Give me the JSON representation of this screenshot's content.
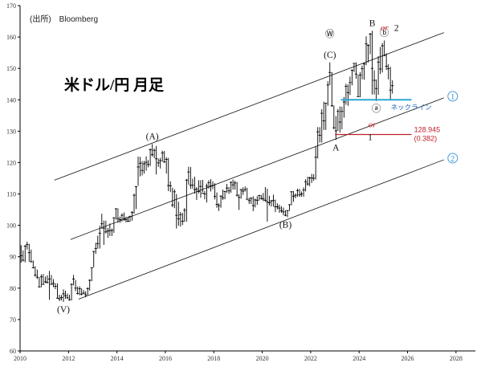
{
  "source_label": "(出所)　Bloomberg",
  "chart_data": {
    "type": "ohlc",
    "title": "米ドル/円 月足",
    "x_ticks": [
      "2010",
      "2012",
      "2014",
      "2016",
      "2018",
      "2020",
      "2022",
      "2024",
      "2026",
      "2028"
    ],
    "y_ticks": [
      "60",
      "70",
      "80",
      "90",
      "100",
      "110",
      "120",
      "130",
      "140",
      "150",
      "160",
      "170"
    ],
    "xlim": [
      2010,
      2028.8
    ],
    "ylim": [
      60,
      170
    ],
    "grid": false,
    "legend": "none",
    "series": [
      {
        "x": [
          "2010-01",
          "2010-02",
          "2010-03",
          "2010-04",
          "2010-05",
          "2010-06",
          "2010-07",
          "2010-08",
          "2010-09",
          "2010-10",
          "2010-11",
          "2010-12",
          "2011-01",
          "2011-02",
          "2011-03",
          "2011-04",
          "2011-05",
          "2011-06",
          "2011-07",
          "2011-08",
          "2011-09",
          "2011-10",
          "2011-11",
          "2011-12",
          "2012-01",
          "2012-02",
          "2012-03",
          "2012-04",
          "2012-05",
          "2012-06",
          "2012-07",
          "2012-08",
          "2012-09",
          "2012-10",
          "2012-11",
          "2012-12",
          "2013-01",
          "2013-02",
          "2013-03",
          "2013-04",
          "2013-05",
          "2013-06",
          "2013-07",
          "2013-08",
          "2013-09",
          "2013-10",
          "2013-11",
          "2013-12",
          "2014-01",
          "2014-02",
          "2014-03",
          "2014-04",
          "2014-05",
          "2014-06",
          "2014-07",
          "2014-08",
          "2014-09",
          "2014-10",
          "2014-11",
          "2014-12",
          "2015-01",
          "2015-02",
          "2015-03",
          "2015-04",
          "2015-05",
          "2015-06",
          "2015-07",
          "2015-08",
          "2015-09",
          "2015-10",
          "2015-11",
          "2015-12",
          "2016-01",
          "2016-02",
          "2016-03",
          "2016-04",
          "2016-05",
          "2016-06",
          "2016-07",
          "2016-08",
          "2016-09",
          "2016-10",
          "2016-11",
          "2016-12",
          "2017-01",
          "2017-02",
          "2017-03",
          "2017-04",
          "2017-05",
          "2017-06",
          "2017-07",
          "2017-08",
          "2017-09",
          "2017-10",
          "2017-11",
          "2017-12",
          "2018-01",
          "2018-02",
          "2018-03",
          "2018-04",
          "2018-05",
          "2018-06",
          "2018-07",
          "2018-08",
          "2018-09",
          "2018-10",
          "2018-11",
          "2018-12",
          "2019-01",
          "2019-02",
          "2019-03",
          "2019-04",
          "2019-05",
          "2019-06",
          "2019-07",
          "2019-08",
          "2019-09",
          "2019-10",
          "2019-11",
          "2019-12",
          "2020-01",
          "2020-02",
          "2020-03",
          "2020-04",
          "2020-05",
          "2020-06",
          "2020-07",
          "2020-08",
          "2020-09",
          "2020-10",
          "2020-11",
          "2020-12",
          "2021-01",
          "2021-02",
          "2021-03",
          "2021-04",
          "2021-05",
          "2021-06",
          "2021-07",
          "2021-08",
          "2021-09",
          "2021-10",
          "2021-11",
          "2021-12",
          "2022-01",
          "2022-02",
          "2022-03",
          "2022-04",
          "2022-05",
          "2022-06",
          "2022-07",
          "2022-08",
          "2022-09",
          "2022-10",
          "2022-11",
          "2022-12",
          "2023-01",
          "2023-02",
          "2023-03",
          "2023-04",
          "2023-05",
          "2023-06",
          "2023-07",
          "2023-08",
          "2023-09",
          "2023-10",
          "2023-11",
          "2023-12",
          "2024-01",
          "2024-02",
          "2024-03",
          "2024-04",
          "2024-05",
          "2024-06",
          "2024-07",
          "2024-08",
          "2024-09",
          "2024-10",
          "2024-11",
          "2024-12",
          "2025-01",
          "2025-02",
          "2025-03",
          "2025-04",
          "2025-05"
        ],
        "close": [
          90.3,
          88.9,
          93.4,
          93.9,
          91.3,
          88.4,
          86.5,
          84.2,
          83.5,
          80.4,
          83.6,
          81.2,
          82.0,
          81.8,
          82.9,
          81.2,
          81.5,
          80.6,
          76.8,
          76.6,
          77.0,
          78.2,
          77.6,
          76.9,
          76.3,
          81.2,
          82.9,
          80.0,
          78.3,
          79.8,
          78.1,
          78.4,
          77.9,
          79.8,
          82.5,
          86.5,
          91.7,
          92.6,
          94.2,
          97.5,
          100.5,
          99.1,
          97.9,
          98.2,
          98.3,
          98.4,
          102.4,
          105.3,
          102.2,
          101.8,
          103.2,
          102.2,
          101.8,
          101.3,
          102.8,
          104.1,
          109.6,
          112.3,
          118.6,
          119.8,
          117.5,
          119.6,
          120.1,
          119.4,
          124.1,
          122.5,
          123.9,
          121.2,
          119.9,
          120.6,
          123.1,
          120.2,
          121.0,
          112.7,
          112.6,
          106.5,
          110.7,
          103.2,
          102.1,
          103.4,
          101.3,
          104.8,
          114.4,
          117.0,
          112.8,
          112.8,
          111.4,
          111.5,
          110.8,
          112.4,
          110.2,
          110.0,
          112.5,
          113.6,
          112.5,
          112.7,
          109.2,
          106.7,
          106.3,
          109.3,
          108.8,
          110.8,
          111.9,
          111.0,
          113.7,
          112.9,
          113.5,
          109.6,
          108.9,
          111.4,
          110.9,
          111.4,
          108.3,
          107.9,
          108.6,
          106.3,
          108.1,
          108.0,
          109.5,
          108.6,
          108.4,
          108.0,
          107.5,
          107.2,
          107.8,
          107.9,
          105.9,
          105.9,
          105.5,
          104.7,
          104.3,
          103.2,
          104.7,
          106.6,
          110.7,
          109.3,
          109.6,
          111.1,
          109.7,
          110.0,
          111.3,
          113.9,
          113.2,
          115.1,
          115.1,
          115.0,
          121.7,
          129.8,
          128.7,
          135.7,
          133.3,
          138.9,
          144.7,
          148.7,
          138.1,
          131.1,
          130.1,
          136.3,
          132.9,
          136.3,
          139.3,
          144.3,
          142.3,
          145.5,
          149.4,
          151.6,
          148.2,
          141.0,
          147.9,
          149.9,
          151.4,
          157.8,
          157.3,
          160.9,
          150.0,
          146.2,
          143.6,
          152.0,
          149.8,
          157.2,
          154.1,
          150.7,
          149.9,
          143.1,
          144.5
        ],
        "high": [
          93.7,
          92.0,
          93.7,
          94.8,
          94.1,
          92.3,
          88.8,
          87.0,
          85.9,
          83.5,
          84.4,
          84.5,
          83.7,
          84.1,
          85.5,
          84.2,
          82.9,
          81.6,
          81.5,
          77.9,
          77.8,
          79.6,
          79.2,
          78.3,
          77.9,
          81.5,
          84.2,
          82.6,
          80.5,
          80.6,
          79.9,
          79.4,
          79.0,
          80.3,
          82.8,
          86.6,
          91.8,
          94.5,
          96.7,
          99.9,
          103.7,
          101.5,
          101.5,
          99.2,
          100.6,
          99.0,
          102.6,
          105.4,
          105.4,
          102.8,
          103.8,
          104.1,
          102.8,
          102.8,
          103.1,
          104.5,
          110.1,
          112.5,
          121.9,
          121.8,
          120.5,
          120.5,
          122.0,
          120.8,
          124.5,
          125.9,
          124.5,
          125.3,
          121.3,
          121.5,
          123.8,
          123.7,
          121.7,
          121.5,
          114.0,
          112.0,
          111.5,
          110.0,
          107.5,
          104.3,
          104.0,
          105.5,
          114.8,
          118.7,
          118.6,
          114.9,
          115.5,
          112.2,
          114.4,
          114.4,
          114.5,
          111.0,
          113.3,
          114.4,
          114.7,
          114.0,
          113.4,
          110.5,
          107.0,
          109.6,
          111.4,
          111.0,
          113.2,
          112.2,
          114.0,
          114.6,
          114.2,
          113.8,
          109.9,
          111.6,
          112.1,
          112.4,
          112.0,
          108.8,
          109.0,
          109.3,
          108.5,
          109.3,
          109.7,
          109.7,
          110.3,
          112.2,
          111.7,
          109.4,
          108.1,
          109.8,
          108.2,
          107.0,
          106.6,
          106.1,
          105.7,
          104.8,
          104.9,
          106.7,
          110.9,
          110.9,
          110.2,
          111.7,
          111.6,
          110.8,
          112.1,
          114.7,
          115.5,
          115.5,
          116.4,
          116.3,
          125.1,
          131.3,
          131.3,
          137.0,
          139.4,
          139.0,
          145.9,
          151.9,
          148.8,
          138.2,
          134.8,
          137.1,
          137.9,
          137.8,
          140.9,
          145.1,
          144.9,
          147.4,
          149.7,
          151.7,
          151.9,
          148.0,
          148.8,
          150.9,
          151.9,
          160.2,
          157.7,
          161.3,
          162.0,
          149.4,
          146.5,
          153.9,
          156.8,
          158.1,
          158.9,
          154.8,
          151.3,
          150.5,
          146.2
        ],
        "low": [
          88.1,
          88.5,
          88.2,
          92.3,
          88.4,
          88.2,
          86.3,
          83.6,
          82.9,
          80.2,
          80.3,
          81.1,
          81.6,
          81.5,
          76.3,
          81.2,
          80.3,
          79.7,
          76.8,
          75.9,
          76.1,
          75.6,
          76.6,
          76.6,
          76.0,
          76.1,
          80.9,
          79.0,
          78.0,
          77.7,
          77.7,
          78.1,
          77.1,
          77.8,
          79.2,
          82.2,
          86.6,
          90.9,
          92.6,
          92.6,
          98.9,
          93.8,
          97.4,
          96.0,
          96.6,
          96.6,
          97.6,
          101.8,
          100.8,
          100.8,
          101.2,
          101.4,
          100.9,
          101.1,
          101.1,
          101.5,
          103.7,
          105.2,
          112.6,
          115.6,
          115.9,
          116.5,
          117.4,
          118.5,
          118.9,
          121.9,
          121.4,
          116.2,
          118.6,
          118.1,
          120.3,
          119.9,
          116.5,
          110.9,
          110.6,
          105.8,
          105.5,
          99.0,
          99.9,
          99.6,
          100.1,
          101.1,
          101.2,
          113.0,
          111.6,
          111.7,
          110.1,
          108.1,
          110.2,
          108.8,
          110.6,
          108.3,
          107.3,
          111.7,
          110.8,
          111.5,
          108.3,
          105.6,
          104.6,
          105.6,
          108.1,
          108.3,
          110.3,
          110.0,
          110.4,
          111.4,
          111.4,
          109.2,
          104.9,
          108.5,
          109.7,
          110.8,
          108.3,
          106.8,
          106.8,
          104.5,
          105.7,
          106.5,
          107.9,
          108.2,
          107.7,
          107.5,
          101.2,
          106.3,
          105.99,
          106.0,
          104.2,
          105.1,
          104.0,
          104.0,
          103.2,
          102.9,
          102.6,
          104.6,
          106.4,
          107.5,
          108.6,
          109.1,
          109.1,
          109.1,
          109.1,
          110.8,
          112.6,
          112.5,
          113.5,
          114.2,
          114.6,
          121.3,
          126.4,
          126.4,
          130.4,
          130.4,
          138.1,
          144.7,
          137.7,
          130.6,
          127.2,
          130.1,
          129.6,
          130.6,
          134.3,
          138.4,
          138.1,
          141.5,
          144.6,
          148.8,
          146.7,
          140.9,
          140.8,
          146.5,
          146.4,
          151.0,
          151.9,
          154.5,
          141.7,
          141.7,
          139.6,
          141.6,
          148.2,
          148.7,
          153.9,
          149.5,
          146.5,
          139.9,
          142.0
        ]
      }
    ],
    "annotations": {
      "wave_labels": [
        {
          "text": "(V)",
          "x": "2011-10",
          "y": 75.6,
          "pos": "below"
        },
        {
          "text": "(A)",
          "x": "2015-06",
          "y": 125.9,
          "pos": "above"
        },
        {
          "text": "(B)",
          "x": "2020-12",
          "y": 102.6,
          "pos": "below"
        },
        {
          "text": "(C)",
          "x": "2022-10",
          "y": 151.9,
          "pos": "above"
        },
        {
          "text": "Ⓦ",
          "x": "2022-10",
          "y": 151.9,
          "pos": "above2"
        },
        {
          "text": "A",
          "x": "2023-01",
          "y": 127.2,
          "pos": "below"
        },
        {
          "text": "B",
          "x": "2024-07",
          "y": 162.0,
          "pos": "above"
        },
        {
          "text": "ⓐ",
          "x": "2024-09",
          "y": 139.6,
          "pos": "below"
        },
        {
          "text": "ⓑ",
          "x": "2025-01",
          "y": 158.9,
          "pos": "above"
        },
        {
          "text": "1",
          "x": "2024-06",
          "y": 128.2,
          "pos": "center"
        },
        {
          "text": "2",
          "x": "2025-07",
          "y": 163.0,
          "pos": "center"
        }
      ],
      "or_labels": [
        {
          "text": "or",
          "x": "2024-10",
          "y": 162.9
        },
        {
          "text": "or",
          "x": "2024-04",
          "y": 132.0
        }
      ],
      "channel_lines": [
        {
          "from": [
            "2011-06",
            114.4
          ],
          "to": [
            "2027-07",
            161.4
          ]
        },
        {
          "from": [
            "2012-02",
            95.5
          ],
          "to": [
            "2027-07",
            140.6
          ],
          "label": "①"
        },
        {
          "from": [
            "2012-06",
            76.5
          ],
          "to": [
            "2027-07",
            120.9
          ],
          "label": "②"
        }
      ],
      "neckline": {
        "label": "ネックライン",
        "y": 140.0,
        "from": "2023-04",
        "to": "2026-03"
      },
      "level": {
        "value": "128.945",
        "ratio": "(0.382)",
        "y": 128.945,
        "from": "2023-01",
        "to": "2026-03"
      }
    }
  }
}
